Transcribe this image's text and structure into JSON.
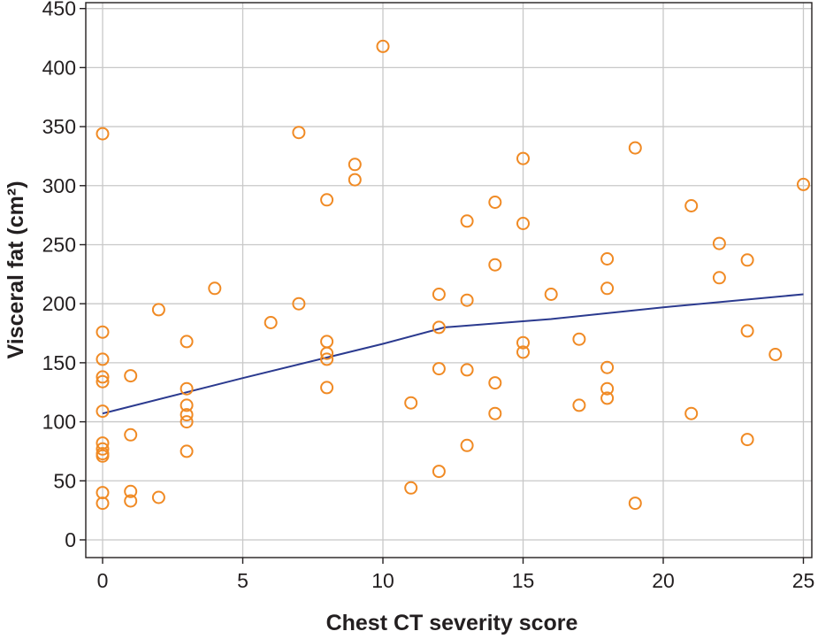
{
  "chart_data": {
    "type": "scatter",
    "title": "",
    "xlabel": "Chest CT severity score",
    "ylabel": "Visceral fat (cm²)",
    "xlim": [
      -0.6,
      25.3
    ],
    "ylim": [
      -15,
      455
    ],
    "x_ticks": [
      0,
      5,
      10,
      15,
      20,
      25
    ],
    "y_ticks": [
      0,
      50,
      100,
      150,
      200,
      250,
      300,
      350,
      400,
      450
    ],
    "grid": true,
    "legend": "none",
    "series": [
      {
        "marker": "open-circle",
        "color": "#f08a24",
        "points": [
          [
            0,
            344
          ],
          [
            0,
            176
          ],
          [
            0,
            153
          ],
          [
            0,
            138
          ],
          [
            0,
            134
          ],
          [
            0,
            109
          ],
          [
            0,
            82
          ],
          [
            0,
            77
          ],
          [
            0,
            73
          ],
          [
            0,
            71
          ],
          [
            0,
            40
          ],
          [
            0,
            31
          ],
          [
            1,
            139
          ],
          [
            1,
            89
          ],
          [
            1,
            41
          ],
          [
            1,
            33
          ],
          [
            2,
            195
          ],
          [
            2,
            36
          ],
          [
            3,
            168
          ],
          [
            3,
            128
          ],
          [
            3,
            114
          ],
          [
            3,
            106
          ],
          [
            3,
            100
          ],
          [
            3,
            75
          ],
          [
            4,
            213
          ],
          [
            6,
            184
          ],
          [
            7,
            345
          ],
          [
            7,
            200
          ],
          [
            8,
            288
          ],
          [
            8,
            168
          ],
          [
            8,
            158
          ],
          [
            8,
            153
          ],
          [
            8,
            129
          ],
          [
            9,
            318
          ],
          [
            9,
            305
          ],
          [
            10,
            418
          ],
          [
            11,
            116
          ],
          [
            11,
            44
          ],
          [
            12,
            208
          ],
          [
            12,
            180
          ],
          [
            12,
            145
          ],
          [
            12,
            58
          ],
          [
            13,
            270
          ],
          [
            13,
            203
          ],
          [
            13,
            144
          ],
          [
            13,
            80
          ],
          [
            14,
            286
          ],
          [
            14,
            233
          ],
          [
            14,
            133
          ],
          [
            14,
            107
          ],
          [
            15,
            323
          ],
          [
            15,
            268
          ],
          [
            15,
            167
          ],
          [
            15,
            159
          ],
          [
            16,
            208
          ],
          [
            17,
            170
          ],
          [
            17,
            114
          ],
          [
            18,
            238
          ],
          [
            18,
            213
          ],
          [
            18,
            146
          ],
          [
            18,
            128
          ],
          [
            18,
            120
          ],
          [
            19,
            332
          ],
          [
            19,
            31
          ],
          [
            21,
            283
          ],
          [
            21,
            107
          ],
          [
            22,
            251
          ],
          [
            22,
            222
          ],
          [
            23,
            237
          ],
          [
            23,
            177
          ],
          [
            23,
            85
          ],
          [
            24,
            157
          ],
          [
            25,
            301
          ]
        ]
      },
      {
        "style": "line",
        "color": "#2b3a8f",
        "points": [
          [
            0,
            107
          ],
          [
            5,
            137
          ],
          [
            10,
            166
          ],
          [
            12.2,
            180
          ],
          [
            16,
            187
          ],
          [
            20,
            197
          ],
          [
            25,
            208
          ]
        ]
      }
    ]
  }
}
